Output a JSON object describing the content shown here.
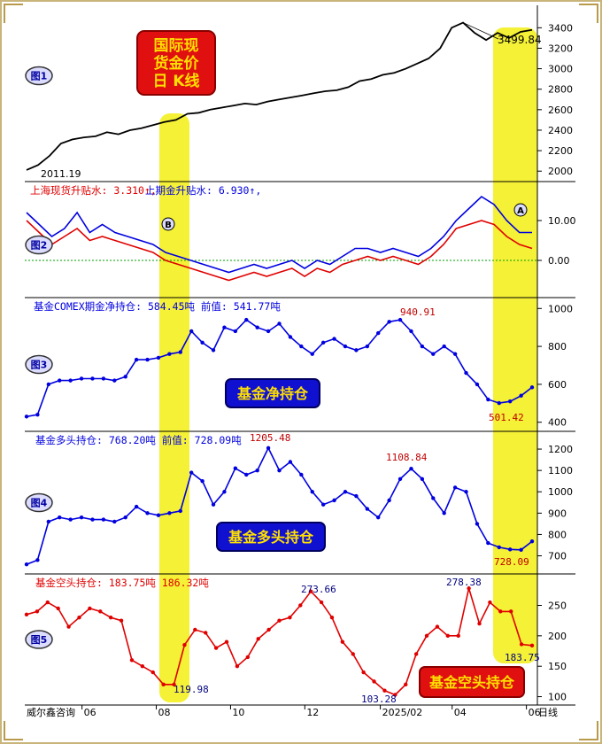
{
  "source_label": "威尔鑫咨询",
  "x_axis": {
    "ticks": [
      {
        "label": "06",
        "date": "2024-06"
      },
      {
        "label": "08",
        "date": "2024-08"
      },
      {
        "label": "10",
        "date": "2024-10"
      },
      {
        "label": "12",
        "date": "2024-12"
      },
      {
        "label": "2025/02",
        "date": "2025-02"
      },
      {
        "label": "04",
        "date": "2025-04"
      },
      {
        "label": "06",
        "date": "2025-06"
      }
    ],
    "suffix": "日线"
  },
  "highlight_bands": [
    {
      "name": "band-left",
      "color": "#f2ef1a"
    },
    {
      "name": "band-right",
      "color": "#f2ef1a"
    }
  ],
  "chart_data": [
    {
      "type": "line",
      "panel_label": "图1",
      "title_box": [
        "国际现",
        "货金价",
        "日 K线"
      ],
      "start_label": "2011.19",
      "peak_label": "3499.84",
      "ylim": [
        1950,
        3550
      ],
      "yticks": [
        2000,
        2200,
        2400,
        2600,
        2800,
        3000,
        3200,
        3400
      ],
      "series": [
        {
          "color": "#000000",
          "values": [
            2011,
            2060,
            2150,
            2270,
            2310,
            2330,
            2340,
            2380,
            2360,
            2400,
            2420,
            2450,
            2480,
            2500,
            2560,
            2570,
            2600,
            2620,
            2640,
            2660,
            2650,
            2680,
            2700,
            2720,
            2740,
            2760,
            2780,
            2790,
            2820,
            2880,
            2900,
            2940,
            2960,
            3000,
            3050,
            3100,
            3200,
            3400,
            3450,
            3350,
            3280,
            3350,
            3300,
            3360,
            3380
          ]
        }
      ]
    },
    {
      "type": "line",
      "panel_label": "图2",
      "legend": [
        {
          "text": "上海现货升贴水: 3.310↑,",
          "color": "#e00000"
        },
        {
          "text": "上期金升贴水: 6.930↑,",
          "color": "#0000e0"
        }
      ],
      "markers": [
        {
          "text": "B"
        },
        {
          "text": "A"
        }
      ],
      "ylim": [
        -8,
        18
      ],
      "yticks": [
        0,
        10
      ],
      "ytick_labels": [
        "0.00",
        "10.00"
      ],
      "series": [
        {
          "name": "上期金升贴水",
          "color": "#0000e0",
          "values": [
            12,
            9,
            6,
            8,
            12,
            7,
            9,
            7,
            6,
            5,
            4,
            2,
            1,
            0,
            -1,
            -2,
            -3,
            -2,
            -1,
            -2,
            -1,
            0,
            -2,
            0,
            -1,
            1,
            3,
            3,
            2,
            3,
            2,
            1,
            3,
            6,
            10,
            13,
            16,
            14,
            10,
            7,
            7
          ]
        },
        {
          "name": "上海现货升贴水",
          "color": "#e00000",
          "values": [
            10,
            7,
            4,
            6,
            8,
            5,
            6,
            5,
            4,
            3,
            2,
            0,
            -1,
            -2,
            -3,
            -4,
            -5,
            -4,
            -3,
            -4,
            -3,
            -2,
            -4,
            -2,
            -3,
            -1,
            0,
            1,
            0,
            1,
            0,
            -1,
            1,
            4,
            8,
            9,
            10,
            9,
            6,
            4,
            3
          ]
        }
      ]
    },
    {
      "type": "line",
      "panel_label": "图3",
      "legend": [
        {
          "text": "基金COMEX期金净持仓: 584.45吨  前值: 541.77吨",
          "color": "#0000e0"
        }
      ],
      "title_box": "基金净持仓",
      "peak_label": "940.91",
      "low_label": "501.42",
      "ylim": [
        380,
        1020
      ],
      "yticks": [
        400,
        600,
        800,
        1000
      ],
      "series": [
        {
          "color": "#0000e0",
          "values": [
            430,
            440,
            600,
            620,
            620,
            630,
            630,
            630,
            620,
            640,
            730,
            730,
            740,
            760,
            770,
            880,
            820,
            780,
            900,
            880,
            940,
            900,
            880,
            920,
            850,
            800,
            760,
            820,
            840,
            800,
            780,
            800,
            870,
            930,
            940,
            880,
            800,
            760,
            800,
            760,
            660,
            600,
            520,
            501,
            510,
            540,
            584
          ]
        }
      ]
    },
    {
      "type": "line",
      "panel_label": "图4",
      "legend": [
        {
          "text": "基金多头持仓: 768.20吨  前值: 728.09吨",
          "color": "#0000e0"
        }
      ],
      "title_box": "基金多头持仓",
      "peak_label": "1205.48",
      "label_2": "1108.84",
      "low_label": "728.09",
      "ylim": [
        640,
        1250
      ],
      "yticks": [
        700,
        800,
        900,
        1000,
        1100,
        1200
      ],
      "series": [
        {
          "color": "#0000e0",
          "values": [
            660,
            680,
            860,
            880,
            870,
            880,
            870,
            870,
            860,
            880,
            930,
            900,
            890,
            900,
            910,
            1090,
            1050,
            940,
            1000,
            1110,
            1080,
            1100,
            1205,
            1100,
            1140,
            1080,
            1000,
            940,
            960,
            1000,
            980,
            920,
            880,
            960,
            1060,
            1108,
            1060,
            970,
            900,
            1020,
            1000,
            850,
            760,
            740,
            730,
            728,
            768
          ]
        }
      ]
    },
    {
      "type": "line",
      "panel_label": "图5",
      "legend": [
        {
          "text": "基金空头持仓: 183.75吨   186.32吨",
          "color": "#e00000"
        }
      ],
      "title_box": "基金空头持仓",
      "peak_label": "273.66",
      "label_2": "278.38",
      "low_label": "119.98",
      "low_label_2": "103.28",
      "end_label": "183.75",
      "ylim": [
        95,
        290
      ],
      "yticks": [
        100,
        150,
        200,
        250
      ],
      "series": [
        {
          "color": "#e00000",
          "values": [
            235,
            240,
            255,
            245,
            215,
            230,
            245,
            240,
            230,
            225,
            160,
            150,
            140,
            120,
            120,
            185,
            210,
            205,
            180,
            190,
            150,
            165,
            195,
            210,
            225,
            230,
            250,
            273,
            255,
            230,
            190,
            170,
            140,
            125,
            110,
            103,
            120,
            170,
            200,
            215,
            200,
            200,
            278,
            220,
            255,
            240,
            240,
            186,
            184
          ]
        }
      ]
    }
  ]
}
